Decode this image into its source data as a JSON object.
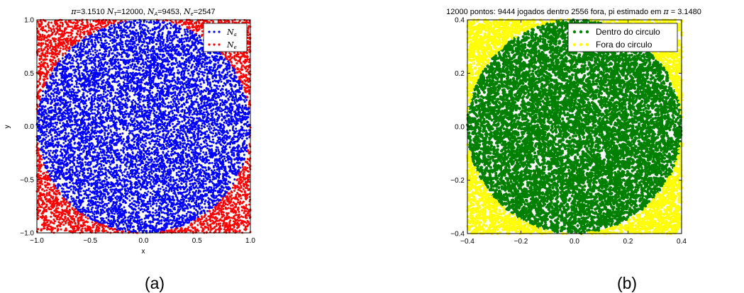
{
  "chart_data": [
    {
      "type": "scatter",
      "title": "π = 3.1510 N_T = 12000, N_A = 9453, N_e = 2547",
      "xlabel": "x",
      "ylabel": "y",
      "xlim": [
        -1.0,
        1.0
      ],
      "ylim": [
        -1.0,
        1.0
      ],
      "xticks": [
        "−1.0",
        "−0.5",
        "0.0",
        "0.5",
        "1.0"
      ],
      "yticks": [
        "−1.0",
        "−0.5",
        "0.0",
        "0.5",
        "1.0"
      ],
      "n_total": 12000,
      "series": [
        {
          "name": "N_a",
          "color": "#0000ff",
          "count": 9453,
          "region": "inside unit circle"
        },
        {
          "name": "N_e",
          "color": "#ff0000",
          "count": 2547,
          "region": "outside unit circle"
        }
      ],
      "legend_placement": "top-right",
      "grid": false,
      "caption": "(a)"
    },
    {
      "type": "scatter",
      "title": "12000 pontos: 9444 jogados dentro 2556 fora, pi estimado em π = 3.1480",
      "xlabel": "",
      "ylabel": "",
      "xlim": [
        -0.5,
        0.5
      ],
      "ylim": [
        -0.5,
        0.5
      ],
      "xticks": [
        "−0.4",
        "−0.2",
        "0.0",
        "0.2",
        "0.4"
      ],
      "yticks": [
        "−0.4",
        "−0.2",
        "0.0",
        "0.2",
        "0.4"
      ],
      "n_total": 12000,
      "series": [
        {
          "name": "Dentro do circulo",
          "color": "#008000",
          "count": 9444,
          "region": "inside circle r=0.5"
        },
        {
          "name": "Fora do circulo",
          "color": "#ffff00",
          "count": 2556,
          "region": "outside circle r=0.5"
        }
      ],
      "legend_placement": "top-right",
      "grid": false,
      "caption": "(b)"
    }
  ]
}
